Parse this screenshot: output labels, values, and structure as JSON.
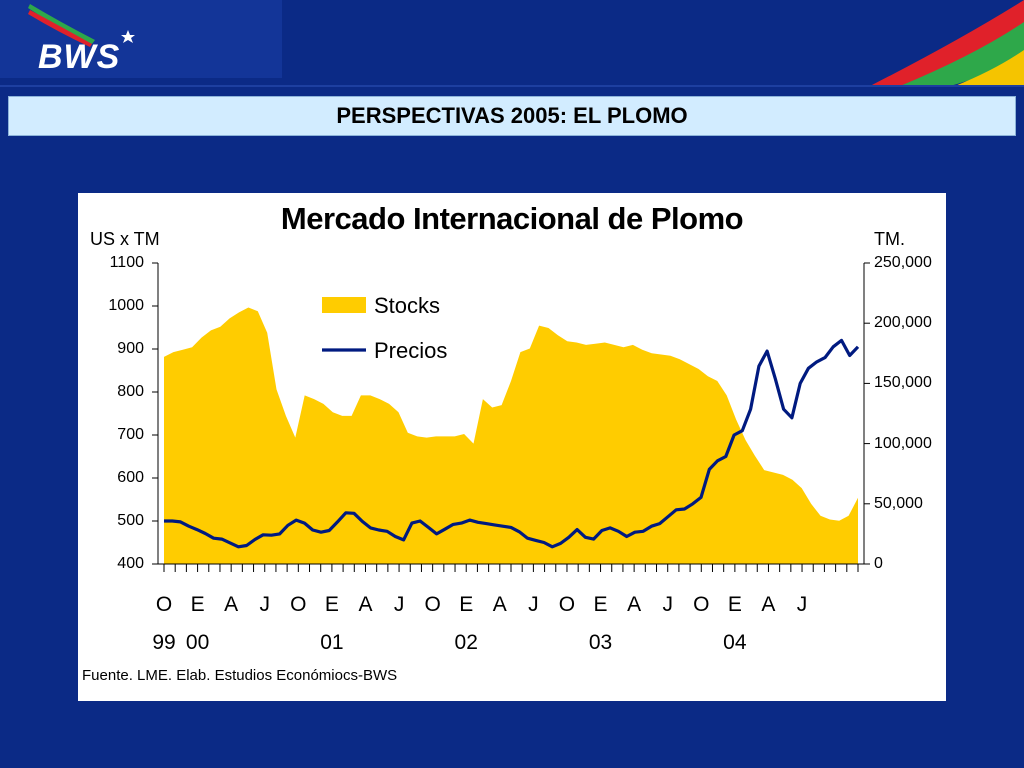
{
  "brand": {
    "logo_text": "BWS"
  },
  "colors": {
    "background": "#0b2a86",
    "stocks_fill": "#ffcc00",
    "precios_line": "#001a80",
    "title_bar": "#d2ecff"
  },
  "slide_title": "PERSPECTIVAS 2005: EL PLOMO",
  "source_note": "Fuente. LME. Elab. Estudios Económiocs-BWS",
  "chart_data": {
    "type": "area",
    "title": "Mercado Internacional de Plomo",
    "ylabel_left": "US x TM",
    "ylabel_right": "TM.",
    "yticks_left": [
      "1100",
      "1000",
      "900",
      "800",
      "700",
      "600",
      "500",
      "400"
    ],
    "yticks_right": [
      "250,000",
      "200,000",
      "150,000",
      "100,000",
      "50,000",
      "0"
    ],
    "ylim_left": [
      400,
      1100
    ],
    "ylim_right": [
      0,
      250000
    ],
    "x_month_labels": [
      "O",
      "E",
      "A",
      "J",
      "O",
      "E",
      "A",
      "J",
      "O",
      "E",
      "A",
      "J",
      "O",
      "E",
      "A",
      "J",
      "O",
      "E",
      "A",
      "J"
    ],
    "x_year_labels": [
      "99",
      "00",
      "01",
      "02",
      "03",
      "04"
    ],
    "x_start": "1999-10",
    "grid": false,
    "legend_position": "top-center",
    "series": [
      {
        "name": "Stocks",
        "type": "area",
        "axis": "right",
        "values": [
          172000,
          176000,
          178000,
          180000,
          188000,
          194000,
          197000,
          204000,
          209000,
          213000,
          210000,
          192000,
          145000,
          123000,
          105000,
          140000,
          137000,
          133000,
          126000,
          123000,
          123000,
          140000,
          140000,
          137000,
          133000,
          126000,
          109000,
          106000,
          105000,
          106000,
          106000,
          106000,
          108000,
          100000,
          137000,
          130000,
          132000,
          152000,
          176000,
          179000,
          198000,
          196000,
          190000,
          185000,
          184000,
          182000,
          183000,
          184000,
          182000,
          180000,
          182000,
          178000,
          175000,
          174000,
          173000,
          170000,
          166000,
          162000,
          156000,
          152000,
          140000,
          120000,
          103000,
          90000,
          78000,
          76000,
          74000,
          70000,
          63000,
          50000,
          40000,
          37000,
          36000,
          40000,
          55000
        ]
      },
      {
        "name": "Precios",
        "type": "line",
        "axis": "left",
        "values": [
          500,
          500,
          498,
          488,
          480,
          471,
          460,
          458,
          449,
          440,
          443,
          457,
          468,
          467,
          470,
          490,
          502,
          495,
          479,
          474,
          478,
          498,
          519,
          518,
          499,
          484,
          479,
          476,
          464,
          456,
          495,
          500,
          485,
          470,
          481,
          492,
          495,
          502,
          497,
          494,
          491,
          488,
          485,
          475,
          460,
          455,
          450,
          440,
          448,
          462,
          480,
          462,
          458,
          478,
          484,
          476,
          464,
          474,
          476,
          488,
          494,
          510,
          526,
          528,
          540,
          555,
          620,
          640,
          650,
          700,
          710,
          760,
          860,
          895,
          830,
          760,
          740,
          820,
          855,
          870,
          880,
          905,
          920,
          885,
          905
        ]
      }
    ]
  }
}
